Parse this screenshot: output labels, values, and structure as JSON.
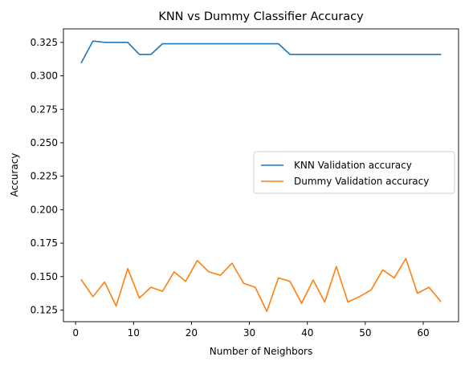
{
  "chart_data": {
    "type": "line",
    "title": "KNN vs Dummy Classifier Accuracy",
    "xlabel": "Number of Neighbors",
    "ylabel": "Accuracy",
    "xlim": [
      -2.1,
      66.1
    ],
    "ylim": [
      0.1163,
      0.3351
    ],
    "xticks": [
      0,
      10,
      20,
      30,
      40,
      50,
      60
    ],
    "yticks": [
      0.125,
      0.15,
      0.175,
      0.2,
      0.225,
      0.25,
      0.275,
      0.3,
      0.325
    ],
    "xtick_labels": [
      "0",
      "10",
      "20",
      "30",
      "40",
      "50",
      "60"
    ],
    "ytick_labels": [
      "0.125",
      "0.150",
      "0.175",
      "0.200",
      "0.225",
      "0.250",
      "0.275",
      "0.300",
      "0.325"
    ],
    "grid": false,
    "legend_position": "center-right",
    "x": [
      1,
      3,
      5,
      7,
      9,
      11,
      13,
      15,
      17,
      19,
      21,
      23,
      25,
      27,
      29,
      31,
      33,
      35,
      37,
      39,
      41,
      43,
      45,
      47,
      49,
      51,
      53,
      55,
      57,
      59,
      61,
      63
    ],
    "series": [
      {
        "name": "KNN Validation accuracy",
        "color": "#1f77b4",
        "values": [
          0.31,
          0.326,
          0.325,
          0.325,
          0.325,
          0.316,
          0.316,
          0.324,
          0.324,
          0.324,
          0.324,
          0.324,
          0.324,
          0.324,
          0.324,
          0.324,
          0.324,
          0.324,
          0.316,
          0.316,
          0.316,
          0.316,
          0.316,
          0.316,
          0.316,
          0.316,
          0.316,
          0.316,
          0.316,
          0.316,
          0.316,
          0.316
        ]
      },
      {
        "name": "Dummy Validation accuracy",
        "color": "#ff7f0e",
        "values": [
          0.1475,
          0.135,
          0.146,
          0.128,
          0.156,
          0.134,
          0.142,
          0.139,
          0.1535,
          0.1465,
          0.162,
          0.1535,
          0.151,
          0.16,
          0.145,
          0.142,
          0.124,
          0.149,
          0.1465,
          0.13,
          0.1475,
          0.131,
          0.1575,
          0.131,
          0.135,
          0.14,
          0.155,
          0.149,
          0.1635,
          0.1375,
          0.142,
          0.1315
        ]
      }
    ]
  }
}
